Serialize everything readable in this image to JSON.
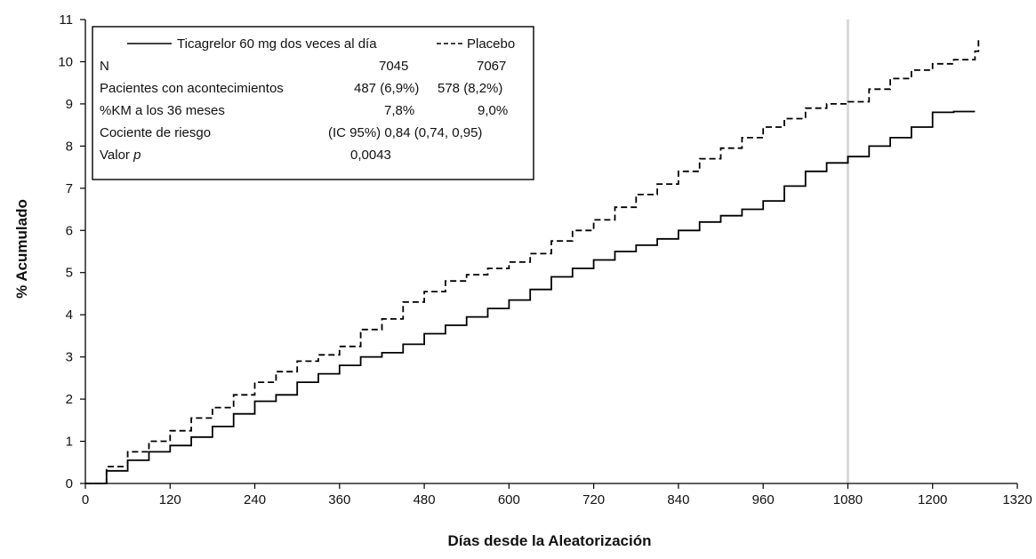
{
  "chart_data": {
    "type": "line",
    "title": "",
    "xlabel": "Días desde la Aleatorización",
    "ylabel": "% Acumulado",
    "xlim": [
      0,
      1320
    ],
    "ylim": [
      0,
      11
    ],
    "x_ticks": [
      0,
      120,
      240,
      360,
      480,
      600,
      720,
      840,
      960,
      1080,
      1200,
      1320
    ],
    "y_ticks": [
      0,
      1,
      2,
      3,
      4,
      5,
      6,
      7,
      8,
      9,
      10,
      11
    ],
    "reference_line_x": 1080,
    "grid": false,
    "legend_position": "top-left",
    "series": [
      {
        "name": "Ticagrelor 60 mg dos veces al día",
        "style": "solid",
        "x": [
          0,
          30,
          60,
          90,
          120,
          150,
          180,
          210,
          240,
          270,
          300,
          330,
          360,
          390,
          420,
          450,
          480,
          510,
          540,
          570,
          600,
          630,
          660,
          690,
          720,
          750,
          780,
          810,
          840,
          870,
          900,
          930,
          960,
          990,
          1020,
          1050,
          1080,
          1110,
          1140,
          1170,
          1200,
          1230,
          1260
        ],
        "values": [
          0,
          0.3,
          0.55,
          0.75,
          0.9,
          1.1,
          1.35,
          1.65,
          1.95,
          2.1,
          2.4,
          2.6,
          2.8,
          3.0,
          3.1,
          3.3,
          3.55,
          3.75,
          3.95,
          4.15,
          4.35,
          4.6,
          4.9,
          5.1,
          5.3,
          5.5,
          5.65,
          5.8,
          6.0,
          6.2,
          6.35,
          6.5,
          6.7,
          7.05,
          7.4,
          7.6,
          7.75,
          8.0,
          8.2,
          8.45,
          8.8,
          8.82,
          8.82
        ]
      },
      {
        "name": "Placebo",
        "style": "dashed",
        "x": [
          0,
          30,
          60,
          90,
          120,
          150,
          180,
          210,
          240,
          270,
          300,
          330,
          360,
          390,
          420,
          450,
          480,
          510,
          540,
          570,
          600,
          630,
          660,
          690,
          720,
          750,
          780,
          810,
          840,
          870,
          900,
          930,
          960,
          990,
          1020,
          1050,
          1080,
          1110,
          1140,
          1170,
          1200,
          1230,
          1260,
          1265
        ],
        "values": [
          0,
          0.4,
          0.75,
          1.0,
          1.25,
          1.55,
          1.8,
          2.1,
          2.4,
          2.65,
          2.9,
          3.05,
          3.25,
          3.65,
          3.9,
          4.3,
          4.55,
          4.8,
          4.95,
          5.1,
          5.25,
          5.45,
          5.75,
          6.0,
          6.25,
          6.55,
          6.85,
          7.1,
          7.4,
          7.7,
          7.95,
          8.2,
          8.45,
          8.65,
          8.9,
          9.0,
          9.05,
          9.35,
          9.6,
          9.8,
          9.95,
          10.05,
          10.25,
          10.55
        ]
      }
    ],
    "legend_table": {
      "headers": [
        "Ticagrelor 60 mg dos veces al día",
        "Placebo"
      ],
      "rows": [
        {
          "label": "N",
          "col1": "7045",
          "col2": "7067"
        },
        {
          "label": "Pacientes con acontecimientos",
          "col1": "487 (6,9%)",
          "col2": "578 (8,2%)"
        },
        {
          "label": "%KM a los 36 meses",
          "col1": "7,8%",
          "col2": "9,0%"
        },
        {
          "label": "Cociente de riesgo",
          "col1": "(IC 95%) 0,84 (0,74, 0,95)",
          "col2": ""
        },
        {
          "label": "Valor",
          "label_italic": "p",
          "col1": "0,0043",
          "col2": ""
        }
      ]
    }
  }
}
